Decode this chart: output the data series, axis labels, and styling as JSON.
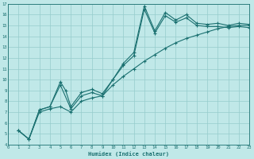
{
  "xlabel": "Humidex (Indice chaleur)",
  "ylabel": "",
  "xlim": [
    0,
    23
  ],
  "ylim": [
    4,
    17
  ],
  "xticks": [
    0,
    1,
    2,
    3,
    4,
    5,
    6,
    7,
    8,
    9,
    10,
    11,
    12,
    13,
    14,
    15,
    16,
    17,
    18,
    19,
    20,
    21,
    22,
    23
  ],
  "yticks": [
    4,
    5,
    6,
    7,
    8,
    9,
    10,
    11,
    12,
    13,
    14,
    15,
    16,
    17
  ],
  "bg_color": "#c0e8e8",
  "line_color": "#1a7070",
  "grid_color": "#96cccc",
  "line1_x": [
    1,
    2,
    3,
    4,
    5,
    5.5,
    6,
    7,
    8,
    9,
    10,
    11,
    12,
    13,
    14,
    15,
    16,
    17,
    18,
    19,
    20,
    21,
    22,
    23
  ],
  "line1_y": [
    5.3,
    4.5,
    7.2,
    7.5,
    9.8,
    9.0,
    7.5,
    8.8,
    9.1,
    8.7,
    10.0,
    11.5,
    12.5,
    16.8,
    14.5,
    16.2,
    15.5,
    16.0,
    15.2,
    15.1,
    15.2,
    15.0,
    15.2,
    15.1
  ],
  "line2_x": [
    1,
    2,
    3,
    4,
    5,
    6,
    7,
    8,
    9,
    10,
    11,
    12,
    13,
    14,
    15,
    16,
    17,
    18,
    19,
    20,
    21,
    22,
    23
  ],
  "line2_y": [
    5.3,
    4.5,
    7.2,
    7.5,
    9.5,
    7.3,
    8.5,
    8.8,
    8.5,
    10.0,
    11.3,
    12.2,
    16.5,
    14.3,
    15.9,
    15.3,
    15.7,
    15.0,
    14.9,
    14.9,
    14.8,
    14.9,
    14.8
  ],
  "line3_x": [
    1,
    2,
    3,
    4,
    5,
    6,
    7,
    8,
    9,
    10,
    11,
    12,
    13,
    14,
    15,
    16,
    17,
    18,
    19,
    20,
    21,
    22,
    23
  ],
  "line3_y": [
    5.3,
    4.5,
    7.0,
    7.3,
    7.5,
    7.0,
    8.0,
    8.3,
    8.5,
    9.5,
    10.3,
    11.0,
    11.7,
    12.3,
    12.9,
    13.4,
    13.8,
    14.1,
    14.4,
    14.7,
    14.9,
    15.0,
    15.0
  ]
}
